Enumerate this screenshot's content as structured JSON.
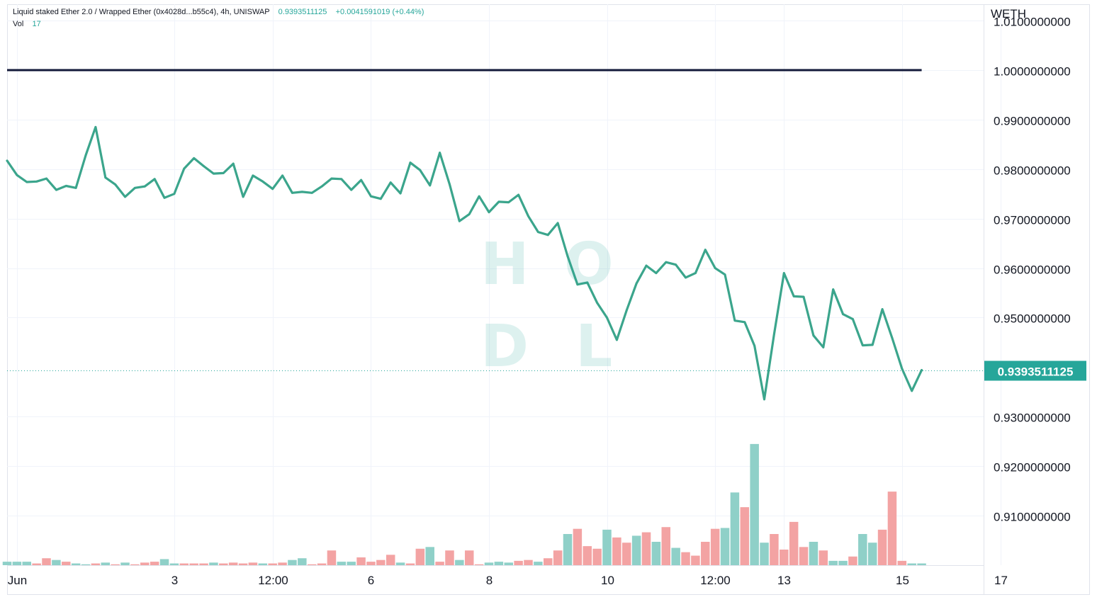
{
  "legend": {
    "title": "Liquid staked Ether 2.0 / Wrapped Ether (0x4028d...b55c4), 4h, UNISWAP",
    "last_value": "0.9393511125",
    "change": "+0.0041591019 (+0.44%)",
    "vol_label": "Vol",
    "vol_value": "17"
  },
  "watermark": {
    "letters": [
      "H",
      "O",
      "D",
      "L"
    ]
  },
  "colors": {
    "line": "#3ba58c",
    "up_volume": "#8fd0c8",
    "down_volume": "#f3a3a3",
    "reference_line": "#131a3a",
    "badge": "#26a69a",
    "grid": "#f0f3fa"
  },
  "chart_data": {
    "type": "line",
    "y_axis_label": "WETH",
    "y_ticks": [
      "1.0100000000",
      "1.0000000000",
      "0.9900000000",
      "0.9800000000",
      "0.9700000000",
      "0.9600000000",
      "0.9500000000",
      "0.9300000000",
      "0.9200000000",
      "0.9100000000"
    ],
    "y_tick_values": [
      1.01,
      1.0,
      0.99,
      0.98,
      0.97,
      0.96,
      0.95,
      0.93,
      0.92,
      0.91
    ],
    "ylim": [
      0.9,
      1.0133
    ],
    "x_ticks": [
      "Jun",
      "3",
      "12:00",
      "6",
      "8",
      "10",
      "12:00",
      "13",
      "15",
      "17"
    ],
    "x_tick_positions": [
      1,
      17,
      27,
      37,
      49,
      61,
      72,
      79,
      91,
      101
    ],
    "xlim": [
      0,
      99.3
    ],
    "reference_line": {
      "value": 1.0,
      "x_start": 0,
      "x_end": 93
    },
    "last_price": 0.9393511125,
    "last_price_label": "0.9393511125",
    "series": [
      {
        "values": [
          0.9817,
          0.9788,
          0.9774,
          0.9775,
          0.9781,
          0.9758,
          0.9766,
          0.9762,
          0.9828,
          0.9885,
          0.9783,
          0.9769,
          0.9744,
          0.9762,
          0.9765,
          0.978,
          0.9742,
          0.975,
          0.9801,
          0.9822,
          0.9806,
          0.9791,
          0.9792,
          0.9811,
          0.9744,
          0.9787,
          0.9775,
          0.976,
          0.9787,
          0.9752,
          0.9754,
          0.9752,
          0.9765,
          0.9781,
          0.978,
          0.9758,
          0.9778,
          0.9745,
          0.974,
          0.9773,
          0.9751,
          0.9813,
          0.9798,
          0.9767,
          0.9833,
          0.9769,
          0.9695,
          0.9709,
          0.9745,
          0.9713,
          0.9734,
          0.9733,
          0.9748,
          0.9705,
          0.9673,
          0.9667,
          0.9691,
          0.9624,
          0.9567,
          0.9571,
          0.953,
          0.95,
          0.9455,
          0.9515,
          0.9569,
          0.9605,
          0.959,
          0.9612,
          0.9607,
          0.9581,
          0.959,
          0.9637,
          0.96,
          0.9587,
          0.9494,
          0.9491,
          0.9443,
          0.9335,
          0.9467,
          0.959,
          0.9543,
          0.9542,
          0.9464,
          0.944,
          0.9557,
          0.9507,
          0.9497,
          0.9444,
          0.9445,
          0.9517,
          0.9459,
          0.9397,
          0.9352,
          0.9394
        ]
      }
    ],
    "volume": {
      "values": [
        0.4,
        0.4,
        0.4,
        0.2,
        0.8,
        0.6,
        0.4,
        0.2,
        0.1,
        0.2,
        0.3,
        0.1,
        0.3,
        0.1,
        0.3,
        0.4,
        0.7,
        0.2,
        0.2,
        0.2,
        0.2,
        0.3,
        0.2,
        0.3,
        0.2,
        0.3,
        0.2,
        0.2,
        0.3,
        0.6,
        0.8,
        0.1,
        0.2,
        1.7,
        0.4,
        0.4,
        0.9,
        0.4,
        0.6,
        1.2,
        0.3,
        0.2,
        1.9,
        2.1,
        0.4,
        1.7,
        0.6,
        1.7,
        0.1,
        0.3,
        0.4,
        0.3,
        0.5,
        0.6,
        0.4,
        0.8,
        1.7,
        3.6,
        4.2,
        2.2,
        1.9,
        4.1,
        3.2,
        2.6,
        3.4,
        3.8,
        2.7,
        4.4,
        2.0,
        1.5,
        1.1,
        2.7,
        4.2,
        4.3,
        8.4,
        6.7,
        14.0,
        2.6,
        3.6,
        1.8,
        5.0,
        2.1,
        2.7,
        1.7,
        0.5,
        0.5,
        1.0,
        3.6,
        2.6,
        4.1,
        8.5,
        0.5,
        0.2,
        0.2
      ],
      "up": [
        1,
        1,
        1,
        0,
        0,
        1,
        0,
        1,
        1,
        0,
        1,
        0,
        1,
        0,
        0,
        0,
        1,
        1,
        0,
        0,
        0,
        1,
        0,
        0,
        0,
        0,
        1,
        0,
        0,
        1,
        1,
        0,
        0,
        0,
        1,
        1,
        0,
        0,
        0,
        0,
        1,
        0,
        0,
        1,
        0,
        0,
        1,
        0,
        0,
        1,
        1,
        1,
        0,
        0,
        1,
        0,
        0,
        1,
        0,
        0,
        0,
        1,
        0,
        0,
        1,
        0,
        1,
        0,
        1,
        0,
        0,
        0,
        0,
        1,
        1,
        0,
        1,
        1,
        0,
        0,
        0,
        0,
        1,
        0,
        1,
        1,
        0,
        1,
        1,
        0,
        0,
        0,
        1,
        1
      ],
      "max": 18
    }
  }
}
